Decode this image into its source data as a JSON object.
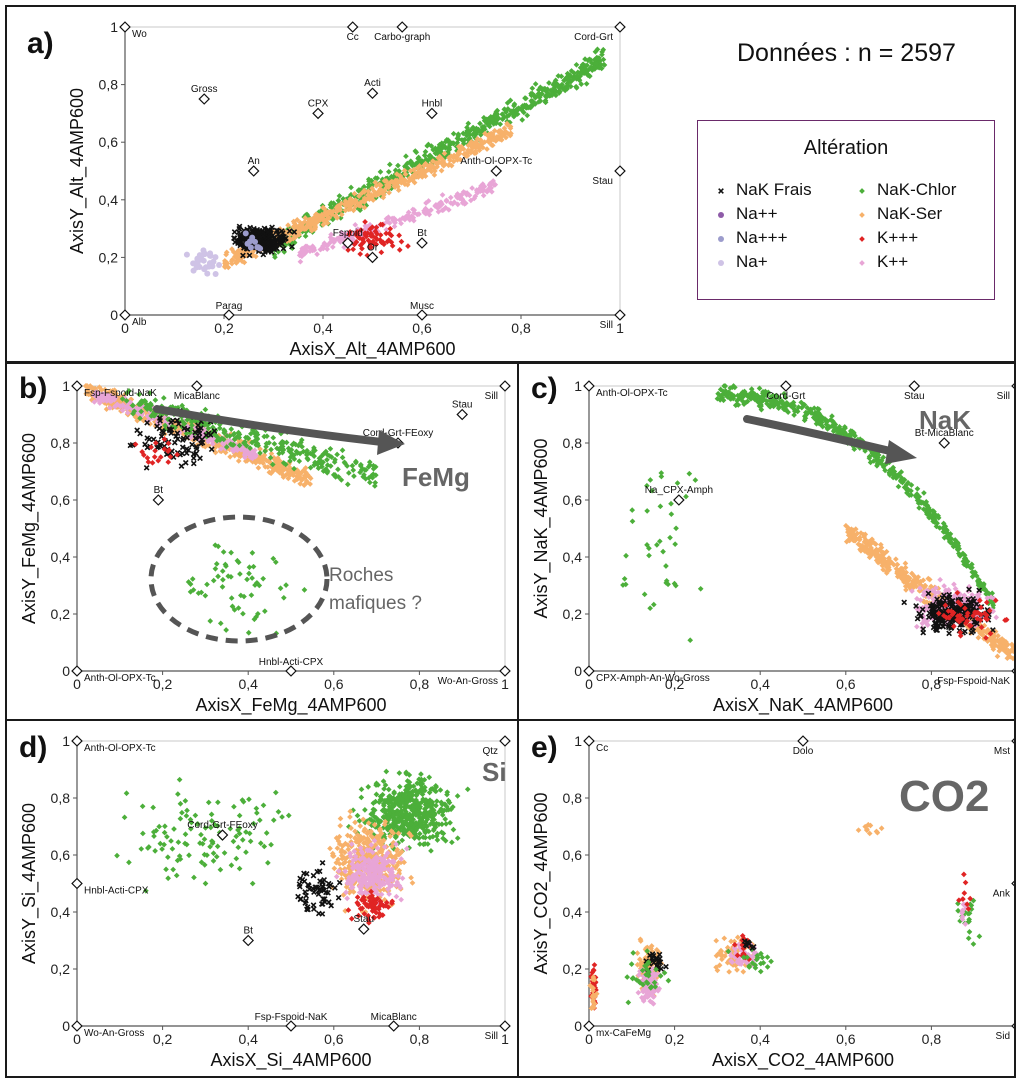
{
  "figure": {
    "count_text": "Données : n = 2597",
    "legend": {
      "title": "Altération",
      "items": [
        {
          "label": "NaK Frais",
          "color": "#111111",
          "marker": "x"
        },
        {
          "label": "Na++",
          "color": "#8e5ba8",
          "marker": "circle"
        },
        {
          "label": "Na+++",
          "color": "#9c9ccc",
          "marker": "circle"
        },
        {
          "label": "Na+",
          "color": "#cfc3e6",
          "marker": "circle"
        },
        {
          "label": "NaK-Chlor",
          "color": "#4caf3a",
          "marker": "diamond"
        },
        {
          "label": "NaK-Ser",
          "color": "#f7b16a",
          "marker": "diamond"
        },
        {
          "label": "K+++",
          "color": "#e02424",
          "marker": "diamond"
        },
        {
          "label": "K++",
          "color": "#e8a5d6",
          "marker": "diamond"
        }
      ]
    }
  },
  "chart_data": [
    {
      "id": "a",
      "panel_label": "a)",
      "type": "scatter",
      "xlabel": "AxisX_Alt_4AMP600",
      "ylabel": "AxisY_Alt_4AMP600",
      "xlim": [
        0,
        1
      ],
      "ylim": [
        0,
        1
      ],
      "xticks": [
        "0",
        "0,2",
        "0,4",
        "0,6",
        "0,8",
        "1"
      ],
      "yticks": [
        "0",
        "0,2",
        "0,4",
        "0,6",
        "0,8",
        "1"
      ],
      "references": [
        {
          "label": "Wo",
          "x": 0.0,
          "y": 1.0
        },
        {
          "label": "Cc",
          "x": 0.46,
          "y": 1.0
        },
        {
          "label": "Carbo-graph",
          "x": 0.56,
          "y": 1.0
        },
        {
          "label": "Cord-Grt",
          "x": 1.0,
          "y": 1.0
        },
        {
          "label": "Gross",
          "x": 0.16,
          "y": 0.75
        },
        {
          "label": "Acti",
          "x": 0.5,
          "y": 0.77
        },
        {
          "label": "CPX",
          "x": 0.39,
          "y": 0.7
        },
        {
          "label": "Hnbl",
          "x": 0.62,
          "y": 0.7
        },
        {
          "label": "An",
          "x": 0.26,
          "y": 0.5
        },
        {
          "label": "Stau",
          "x": 1.0,
          "y": 0.5
        },
        {
          "label": "Anth-Ol-OPX-Tc",
          "x": 0.75,
          "y": 0.5
        },
        {
          "label": "Fspoid",
          "x": 0.45,
          "y": 0.25
        },
        {
          "label": "Or",
          "x": 0.5,
          "y": 0.2
        },
        {
          "label": "Bt",
          "x": 0.6,
          "y": 0.25
        },
        {
          "label": "Alb",
          "x": 0.0,
          "y": 0.0
        },
        {
          "label": "Parag",
          "x": 0.21,
          "y": 0.0
        },
        {
          "label": "Musc",
          "x": 0.6,
          "y": 0.0
        },
        {
          "label": "Sill",
          "x": 1.0,
          "y": 0.0
        }
      ],
      "clusters": [
        {
          "group": "NaK-Chlor",
          "n": 620,
          "x": [
            0.3,
            0.97
          ],
          "y": [
            0.2,
            0.92
          ],
          "shape": "band",
          "slope": 0.97,
          "intercept": -0.05,
          "width": 0.07
        },
        {
          "group": "NaK-Ser",
          "n": 520,
          "x": [
            0.2,
            0.78
          ],
          "y": [
            0.17,
            0.62
          ],
          "shape": "band",
          "slope": 0.8,
          "intercept": 0.02,
          "width": 0.05
        },
        {
          "group": "K++",
          "n": 230,
          "x": [
            0.35,
            0.75
          ],
          "y": [
            0.2,
            0.45
          ],
          "shape": "band",
          "slope": 0.6,
          "intercept": 0.0,
          "width": 0.04
        },
        {
          "group": "K+++",
          "n": 70,
          "x": [
            0.38,
            0.62
          ],
          "y": [
            0.18,
            0.35
          ],
          "shape": "blob"
        },
        {
          "group": "NaK Frais",
          "n": 230,
          "x": [
            0.19,
            0.36
          ],
          "y": [
            0.19,
            0.33
          ],
          "shape": "blob"
        },
        {
          "group": "Na+",
          "n": 30,
          "x": [
            0.1,
            0.22
          ],
          "y": [
            0.12,
            0.25
          ],
          "shape": "blob"
        },
        {
          "group": "Na+++",
          "n": 10,
          "x": [
            0.2,
            0.3
          ],
          "y": [
            0.2,
            0.3
          ],
          "shape": "blob"
        }
      ]
    },
    {
      "id": "b",
      "panel_label": "b)",
      "type": "scatter",
      "xlabel": "AxisX_FeMg_4AMP600",
      "ylabel": "AxisY_FeMg_4AMP600",
      "xlim": [
        0,
        1
      ],
      "ylim": [
        0,
        1
      ],
      "xticks": [
        "0",
        "0,2",
        "0,4",
        "0,6",
        "0,8",
        "1"
      ],
      "yticks": [
        "0",
        "0,2",
        "0,4",
        "0,6",
        "0,8",
        "1"
      ],
      "annotations": [
        "FeMg",
        "Roches",
        "mafiques ?"
      ],
      "references": [
        {
          "label": "Fsp-Fspoid-NaK",
          "x": 0.0,
          "y": 1.0
        },
        {
          "label": "MicaBlanc",
          "x": 0.28,
          "y": 1.0
        },
        {
          "label": "Sill",
          "x": 1.0,
          "y": 1.0
        },
        {
          "label": "Stau",
          "x": 0.9,
          "y": 0.9
        },
        {
          "label": "Cord-Grt-FEoxy",
          "x": 0.75,
          "y": 0.8
        },
        {
          "label": "Bt",
          "x": 0.19,
          "y": 0.6
        },
        {
          "label": "Anth-Ol-OPX-Tc",
          "x": 0.0,
          "y": 0.0
        },
        {
          "label": "Hnbl-Acti-CPX",
          "x": 0.5,
          "y": 0.0
        },
        {
          "label": "Wo-An-Gross",
          "x": 1.0,
          "y": 0.0
        }
      ],
      "clusters": [
        {
          "group": "NaK-Ser",
          "n": 520,
          "x": [
            0.02,
            0.55
          ],
          "y": [
            0.62,
            1.0
          ],
          "shape": "band",
          "slope": -0.6,
          "intercept": 1.0,
          "width": 0.06
        },
        {
          "group": "K++",
          "n": 240,
          "x": [
            0.04,
            0.42
          ],
          "y": [
            0.75,
            1.0
          ],
          "shape": "band",
          "slope": -0.55,
          "intercept": 0.99,
          "width": 0.04
        },
        {
          "group": "NaK-Chlor",
          "n": 300,
          "x": [
            0.1,
            0.7
          ],
          "y": [
            0.55,
            1.0
          ],
          "shape": "band",
          "slope": -0.45,
          "intercept": 1.0,
          "width": 0.09
        },
        {
          "group": "NaK-Chlor",
          "n": 60,
          "x": [
            0.15,
            0.6
          ],
          "y": [
            0.05,
            0.55
          ],
          "shape": "blob"
        },
        {
          "group": "NaK Frais",
          "n": 90,
          "x": [
            0.08,
            0.4
          ],
          "y": [
            0.65,
            0.98
          ],
          "shape": "blob"
        },
        {
          "group": "K+++",
          "n": 20,
          "x": [
            0.1,
            0.3
          ],
          "y": [
            0.62,
            0.9
          ],
          "shape": "blob"
        }
      ]
    },
    {
      "id": "c",
      "panel_label": "c)",
      "type": "scatter",
      "xlabel": "AxisX_NaK_4AMP600",
      "ylabel": "AxisY_NaK_4AMP600",
      "xlim": [
        0,
        1
      ],
      "ylim": [
        0,
        1
      ],
      "xticks": [
        "0",
        "0,2",
        "0,4",
        "0,6",
        "0,8",
        "1"
      ],
      "yticks": [
        "0",
        "0,2",
        "0,4",
        "0,6",
        "0,8",
        "1"
      ],
      "annotations": [
        "NaK"
      ],
      "references": [
        {
          "label": "Anth-Ol-OPX-Tc",
          "x": 0.0,
          "y": 1.0
        },
        {
          "label": "Cord-Grt",
          "x": 0.46,
          "y": 1.0
        },
        {
          "label": "Stau",
          "x": 0.76,
          "y": 1.0
        },
        {
          "label": "Sill",
          "x": 1.0,
          "y": 1.0
        },
        {
          "label": "Bt-MicaBlanc",
          "x": 0.83,
          "y": 0.8
        },
        {
          "label": "Na_CPX-Amph",
          "x": 0.21,
          "y": 0.6
        },
        {
          "label": "CPX-Amph-An-Wo-Gross",
          "x": 0.0,
          "y": 0.0
        },
        {
          "label": "Fsp-Fspoid-NaK",
          "x": 1.0,
          "y": 0.0
        }
      ],
      "clusters": [
        {
          "group": "NaK-Chlor",
          "n": 500,
          "x": [
            0.3,
            0.95
          ],
          "y": [
            0.3,
            1.0
          ],
          "shape": "curve"
        },
        {
          "group": "NaK-Ser",
          "n": 420,
          "x": [
            0.6,
            1.0
          ],
          "y": [
            0.1,
            0.6
          ],
          "shape": "band",
          "slope": -1.1,
          "intercept": 1.15,
          "width": 0.07
        },
        {
          "group": "K++",
          "n": 220,
          "x": [
            0.7,
            1.0
          ],
          "y": [
            0.1,
            0.35
          ],
          "shape": "blob"
        },
        {
          "group": "NaK Frais",
          "n": 200,
          "x": [
            0.72,
            0.98
          ],
          "y": [
            0.1,
            0.3
          ],
          "shape": "blob"
        },
        {
          "group": "K+++",
          "n": 50,
          "x": [
            0.78,
            1.0
          ],
          "y": [
            0.08,
            0.3
          ],
          "shape": "blob"
        },
        {
          "group": "NaK-Chlor",
          "n": 40,
          "x": [
            0.0,
            0.35
          ],
          "y": [
            0.0,
            0.95
          ],
          "shape": "blob"
        }
      ]
    },
    {
      "id": "d",
      "panel_label": "d)",
      "type": "scatter",
      "xlabel": "AxisX_Si_4AMP600",
      "ylabel": "AxisY_Si_4AMP600",
      "xlim": [
        0,
        1
      ],
      "ylim": [
        0,
        1
      ],
      "xticks": [
        "0",
        "0,2",
        "0,4",
        "0,6",
        "0,8",
        "1"
      ],
      "yticks": [
        "0",
        "0,2",
        "0,4",
        "0,6",
        "0,8",
        "1"
      ],
      "annotations": [
        "Si"
      ],
      "references": [
        {
          "label": "Anth-Ol-OPX-Tc",
          "x": 0.0,
          "y": 1.0
        },
        {
          "label": "Qtz",
          "x": 1.0,
          "y": 1.0
        },
        {
          "label": "Cord-Grt-FEoxy",
          "x": 0.34,
          "y": 0.67
        },
        {
          "label": "Hnbl-Acti-CPX",
          "x": 0.0,
          "y": 0.5
        },
        {
          "label": "Stau",
          "x": 0.67,
          "y": 0.34
        },
        {
          "label": "Bt",
          "x": 0.4,
          "y": 0.3
        },
        {
          "label": "Wo-An-Gross",
          "x": 0.0,
          "y": 0.0
        },
        {
          "label": "Fsp-Fspoid-NaK",
          "x": 0.5,
          "y": 0.0
        },
        {
          "label": "MicaBlanc",
          "x": 0.74,
          "y": 0.0
        },
        {
          "label": "Sill",
          "x": 1.0,
          "y": 0.0
        }
      ],
      "clusters": [
        {
          "group": "NaK-Chlor",
          "n": 480,
          "x": [
            0.6,
            0.95
          ],
          "y": [
            0.55,
            0.95
          ],
          "shape": "blob"
        },
        {
          "group": "NaK-Ser",
          "n": 360,
          "x": [
            0.55,
            0.82
          ],
          "y": [
            0.35,
            0.8
          ],
          "shape": "blob"
        },
        {
          "group": "K++",
          "n": 220,
          "x": [
            0.58,
            0.8
          ],
          "y": [
            0.38,
            0.7
          ],
          "shape": "blob"
        },
        {
          "group": "K+++",
          "n": 60,
          "x": [
            0.6,
            0.78
          ],
          "y": [
            0.33,
            0.5
          ],
          "shape": "blob"
        },
        {
          "group": "NaK Frais",
          "n": 60,
          "x": [
            0.48,
            0.64
          ],
          "y": [
            0.35,
            0.6
          ],
          "shape": "blob"
        },
        {
          "group": "NaK-Chlor",
          "n": 120,
          "x": [
            0.0,
            0.6
          ],
          "y": [
            0.4,
            0.95
          ],
          "shape": "blob"
        }
      ]
    },
    {
      "id": "e",
      "panel_label": "e)",
      "type": "scatter",
      "xlabel": "AxisX_CO2_4AMP600",
      "ylabel": "AxisY_CO2_4AMP600",
      "xlim": [
        0,
        1
      ],
      "ylim": [
        0,
        1
      ],
      "xticks": [
        "0",
        "0,2",
        "0,4",
        "0,6",
        "0,8",
        "1"
      ],
      "yticks": [
        "0",
        "0,2",
        "0,4",
        "0,6",
        "0,8",
        "1"
      ],
      "annotations": [
        "CO2"
      ],
      "references": [
        {
          "label": "Cc",
          "x": 0.0,
          "y": 1.0
        },
        {
          "label": "Dolo",
          "x": 0.5,
          "y": 1.0
        },
        {
          "label": "Mst",
          "x": 1.0,
          "y": 1.0
        },
        {
          "label": "Ank",
          "x": 1.0,
          "y": 0.5
        },
        {
          "label": "mx-CaFeMg",
          "x": 0.0,
          "y": 0.0
        },
        {
          "label": "Sid",
          "x": 1.0,
          "y": 0.0
        }
      ],
      "clusters": [
        {
          "group": "NaK-Ser",
          "n": 120,
          "x": [
            0.1,
            0.18
          ],
          "y": [
            0.05,
            0.35
          ],
          "shape": "blob"
        },
        {
          "group": "K++",
          "n": 110,
          "x": [
            0.1,
            0.18
          ],
          "y": [
            0.05,
            0.25
          ],
          "shape": "blob"
        },
        {
          "group": "NaK Frais",
          "n": 25,
          "x": [
            0.11,
            0.2
          ],
          "y": [
            0.15,
            0.3
          ],
          "shape": "blob"
        },
        {
          "group": "NaK-Chlor",
          "n": 30,
          "x": [
            0.05,
            0.22
          ],
          "y": [
            0.05,
            0.3
          ],
          "shape": "blob"
        },
        {
          "group": "NaK-Ser",
          "n": 70,
          "x": [
            0.27,
            0.42
          ],
          "y": [
            0.15,
            0.35
          ],
          "shape": "blob"
        },
        {
          "group": "K++",
          "n": 40,
          "x": [
            0.3,
            0.42
          ],
          "y": [
            0.18,
            0.33
          ],
          "shape": "blob"
        },
        {
          "group": "K+++",
          "n": 15,
          "x": [
            0.33,
            0.4
          ],
          "y": [
            0.2,
            0.35
          ],
          "shape": "blob"
        },
        {
          "group": "NaK-Chlor",
          "n": 20,
          "x": [
            0.3,
            0.48
          ],
          "y": [
            0.15,
            0.3
          ],
          "shape": "blob"
        },
        {
          "group": "NaK Frais",
          "n": 10,
          "x": [
            0.33,
            0.42
          ],
          "y": [
            0.25,
            0.32
          ],
          "shape": "blob"
        },
        {
          "group": "K+++",
          "n": 40,
          "x": [
            0.0,
            0.02
          ],
          "y": [
            0.0,
            0.25
          ],
          "shape": "blob"
        },
        {
          "group": "NaK-Ser",
          "n": 20,
          "x": [
            0.0,
            0.02
          ],
          "y": [
            0.0,
            0.25
          ],
          "shape": "blob"
        },
        {
          "group": "NaK-Ser",
          "n": 10,
          "x": [
            0.58,
            0.73
          ],
          "y": [
            0.66,
            0.72
          ],
          "shape": "blob"
        },
        {
          "group": "NaK-Chlor",
          "n": 20,
          "x": [
            0.83,
            0.93
          ],
          "y": [
            0.15,
            0.6
          ],
          "shape": "blob"
        },
        {
          "group": "K++",
          "n": 10,
          "x": [
            0.85,
            0.9
          ],
          "y": [
            0.3,
            0.5
          ],
          "shape": "blob"
        },
        {
          "group": "K+++",
          "n": 8,
          "x": [
            0.86,
            0.9
          ],
          "y": [
            0.35,
            0.55
          ],
          "shape": "blob"
        }
      ]
    }
  ]
}
